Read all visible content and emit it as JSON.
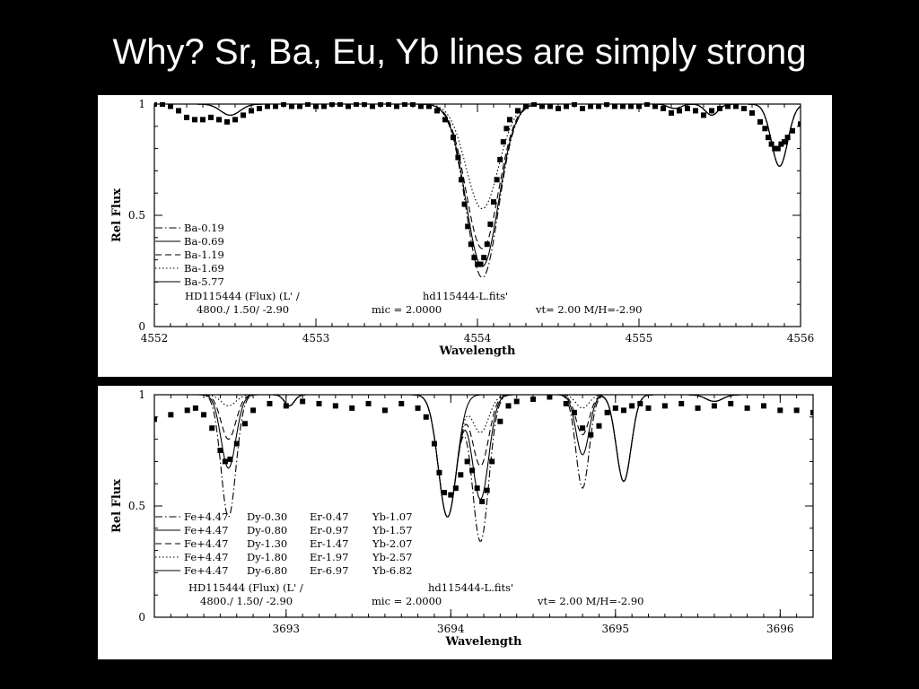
{
  "slide": {
    "title": "Why?  Sr, Ba, Eu, Yb lines are simply strong"
  },
  "chart_data": [
    {
      "type": "line",
      "xlabel": "Wavelength",
      "ylabel": "Rel Flux",
      "xlim": [
        4552,
        4556
      ],
      "ylim": [
        0,
        1
      ],
      "xticks": [
        "4552",
        "4553",
        "4554",
        "4555",
        "4556"
      ],
      "yticks": [
        "0",
        "0.5",
        "1"
      ],
      "legend": {
        "placement": "lower-left",
        "entries": [
          "Ba-0.19",
          "Ba-0.69",
          "Ba-1.19",
          "Ba-1.69",
          "Ba-5.77"
        ],
        "styles": [
          "dashdot",
          "solid",
          "dashed",
          "dotted",
          "solid"
        ]
      },
      "info_lines": [
        [
          "HD115444 (Flux) (L' /",
          "hd115444-L.fits'"
        ],
        [
          "4800./    1.50/   -2.90",
          "mic = 2.0000",
          "vt=  2.00 M/H=-2.90"
        ]
      ],
      "series": [
        {
          "name": "Ba-0.19",
          "style": "dashdot",
          "depths": [
            0.78
          ]
        },
        {
          "name": "Ba-0.69",
          "style": "solid",
          "depths": [
            0.73
          ]
        },
        {
          "name": "Ba-1.19",
          "style": "dashed",
          "depths": [
            0.65
          ]
        },
        {
          "name": "Ba-1.69",
          "style": "dotted",
          "depths": [
            0.47
          ]
        },
        {
          "name": "Ba-5.77",
          "style": "solid",
          "depths": [
            0.0
          ]
        }
      ],
      "continuum_lines": [
        {
          "center": 4552.47,
          "width": 0.06,
          "depth": 0.05
        },
        {
          "center": 4555.22,
          "width": 0.04,
          "depth": 0.02
        },
        {
          "center": 4555.45,
          "width": 0.04,
          "depth": 0.05
        },
        {
          "center": 4555.87,
          "width": 0.05,
          "depth": 0.28
        }
      ],
      "ba_line": {
        "center": 4554.03,
        "width": 0.1
      },
      "observed": {
        "x": [
          4552.0,
          4552.05,
          4552.1,
          4552.15,
          4552.2,
          4552.25,
          4552.3,
          4552.35,
          4552.4,
          4552.45,
          4552.5,
          4552.55,
          4552.6,
          4552.65,
          4552.7,
          4552.75,
          4552.8,
          4552.85,
          4552.9,
          4552.95,
          4553.0,
          4553.05,
          4553.1,
          4553.15,
          4553.2,
          4553.25,
          4553.3,
          4553.35,
          4553.4,
          4553.45,
          4553.5,
          4553.55,
          4553.6,
          4553.65,
          4553.7,
          4553.75,
          4553.8,
          4553.85,
          4553.88,
          4553.9,
          4553.92,
          4553.94,
          4553.96,
          4553.98,
          4554.0,
          4554.02,
          4554.04,
          4554.06,
          4554.08,
          4554.1,
          4554.12,
          4554.14,
          4554.16,
          4554.18,
          4554.2,
          4554.25,
          4554.3,
          4554.35,
          4554.4,
          4554.45,
          4554.5,
          4554.55,
          4554.6,
          4554.65,
          4554.7,
          4554.75,
          4554.8,
          4554.85,
          4554.9,
          4554.95,
          4555.0,
          4555.05,
          4555.1,
          4555.15,
          4555.2,
          4555.25,
          4555.3,
          4555.35,
          4555.4,
          4555.45,
          4555.5,
          4555.55,
          4555.6,
          4555.65,
          4555.7,
          4555.75,
          4555.78,
          4555.8,
          4555.82,
          4555.84,
          4555.86,
          4555.88,
          4555.9,
          4555.92,
          4555.95,
          4556.0
        ],
        "y": [
          1.0,
          1.0,
          0.99,
          0.97,
          0.94,
          0.93,
          0.93,
          0.94,
          0.93,
          0.92,
          0.93,
          0.95,
          0.97,
          0.98,
          0.99,
          0.99,
          1.0,
          0.99,
          0.99,
          1.0,
          0.99,
          0.99,
          1.0,
          1.0,
          0.99,
          1.0,
          1.0,
          0.99,
          1.0,
          1.0,
          0.99,
          1.0,
          1.0,
          0.99,
          0.99,
          0.97,
          0.93,
          0.85,
          0.76,
          0.66,
          0.55,
          0.45,
          0.37,
          0.31,
          0.28,
          0.28,
          0.31,
          0.37,
          0.46,
          0.56,
          0.66,
          0.75,
          0.83,
          0.89,
          0.93,
          0.97,
          0.99,
          1.0,
          0.99,
          0.99,
          0.98,
          0.99,
          1.0,
          0.98,
          0.99,
          0.99,
          1.0,
          0.99,
          0.99,
          0.99,
          0.99,
          1.0,
          0.99,
          0.98,
          0.96,
          0.97,
          0.98,
          0.97,
          0.95,
          0.97,
          0.98,
          0.99,
          0.99,
          0.98,
          0.96,
          0.92,
          0.89,
          0.85,
          0.82,
          0.8,
          0.8,
          0.82,
          0.83,
          0.85,
          0.88,
          0.91
        ]
      }
    },
    {
      "type": "line",
      "xlabel": "Wavelength",
      "ylabel": "Rel Flux",
      "xlim": [
        3692.2,
        3696.2
      ],
      "ylim": [
        0,
        1
      ],
      "xticks": [
        "3693",
        "3694",
        "3695",
        "3696"
      ],
      "yticks": [
        "0",
        "0.5",
        "1"
      ],
      "legend": {
        "placement": "lower-left",
        "entries": [
          [
            "Fe+4.47",
            "Dy-0.30",
            "Er-0.47",
            "Yb-1.07"
          ],
          [
            "Fe+4.47",
            "Dy-0.80",
            "Er-0.97",
            "Yb-1.57"
          ],
          [
            "Fe+4.47",
            "Dy-1.30",
            "Er-1.47",
            "Yb-2.07"
          ],
          [
            "Fe+4.47",
            "Dy-1.80",
            "Er-1.97",
            "Yb-2.57"
          ],
          [
            "Fe+4.47",
            "Dy-6.80",
            "Er-6.97",
            "Yb-6.82"
          ]
        ],
        "styles": [
          "dashdot",
          "solid",
          "dashed",
          "dotted",
          "solid"
        ]
      },
      "info_lines": [
        [
          "HD115444 (Flux) (L' /",
          "hd115444-L.fits'"
        ],
        [
          "4800./   1.50/   -2.90",
          "mic = 2.0000",
          "vt=  2.00 M/H=-2.90"
        ]
      ],
      "series": [
        {
          "name": "Fe+4.47 Dy-0.30 Er-0.47 Yb-1.07",
          "style": "dashdot",
          "depths": [
            0.55,
            0.66,
            0.42
          ]
        },
        {
          "name": "Fe+4.47 Dy-0.80 Er-0.97 Yb-1.57",
          "style": "solid",
          "depths": [
            0.33,
            0.47,
            0.27
          ]
        },
        {
          "name": "Fe+4.47 Dy-1.30 Er-1.47 Yb-2.07",
          "style": "dashed",
          "depths": [
            0.2,
            0.32,
            0.18
          ]
        },
        {
          "name": "Fe+4.47 Dy-1.80 Er-1.97 Yb-2.57",
          "style": "dotted",
          "depths": [
            0.05,
            0.17,
            0.06
          ]
        },
        {
          "name": "Fe+4.47 Dy-6.80 Er-6.97 Yb-6.82",
          "style": "solid",
          "depths": [
            0.0,
            0.0,
            0.0
          ]
        }
      ],
      "variable_lines": [
        {
          "center": 3692.65,
          "width": 0.045
        },
        {
          "center": 3694.18,
          "width": 0.05
        },
        {
          "center": 3694.8,
          "width": 0.04
        }
      ],
      "fixed_lines": [
        {
          "center": 3693.02,
          "width": 0.03,
          "depth": 0.05
        },
        {
          "center": 3693.98,
          "width": 0.055,
          "depth": 0.55
        },
        {
          "center": 3695.05,
          "width": 0.045,
          "depth": 0.39
        },
        {
          "center": 3695.6,
          "width": 0.05,
          "depth": 0.03
        }
      ],
      "observed": {
        "x": [
          3692.2,
          3692.3,
          3692.4,
          3692.45,
          3692.5,
          3692.55,
          3692.6,
          3692.63,
          3692.66,
          3692.7,
          3692.75,
          3692.8,
          3692.9,
          3693.0,
          3693.1,
          3693.2,
          3693.3,
          3693.4,
          3693.5,
          3693.6,
          3693.7,
          3693.8,
          3693.85,
          3693.9,
          3693.93,
          3693.96,
          3694.0,
          3694.03,
          3694.06,
          3694.1,
          3694.13,
          3694.16,
          3694.19,
          3694.22,
          3694.25,
          3694.3,
          3694.35,
          3694.4,
          3694.5,
          3694.6,
          3694.7,
          3694.75,
          3694.8,
          3694.85,
          3694.9,
          3694.95,
          3695.0,
          3695.05,
          3695.1,
          3695.15,
          3695.2,
          3695.3,
          3695.4,
          3695.5,
          3695.6,
          3695.7,
          3695.8,
          3695.9,
          3696.0,
          3696.1,
          3696.2
        ],
        "y": [
          0.89,
          0.91,
          0.93,
          0.94,
          0.91,
          0.85,
          0.75,
          0.7,
          0.71,
          0.78,
          0.87,
          0.93,
          0.96,
          0.95,
          0.97,
          0.96,
          0.95,
          0.94,
          0.96,
          0.93,
          0.96,
          0.94,
          0.9,
          0.78,
          0.65,
          0.56,
          0.55,
          0.58,
          0.64,
          0.7,
          0.66,
          0.58,
          0.52,
          0.57,
          0.7,
          0.88,
          0.95,
          0.97,
          0.98,
          0.99,
          0.96,
          0.92,
          0.85,
          0.82,
          0.86,
          0.92,
          0.94,
          0.93,
          0.95,
          0.96,
          0.94,
          0.95,
          0.96,
          0.94,
          0.95,
          0.96,
          0.94,
          0.95,
          0.93,
          0.93,
          0.92
        ]
      }
    }
  ]
}
